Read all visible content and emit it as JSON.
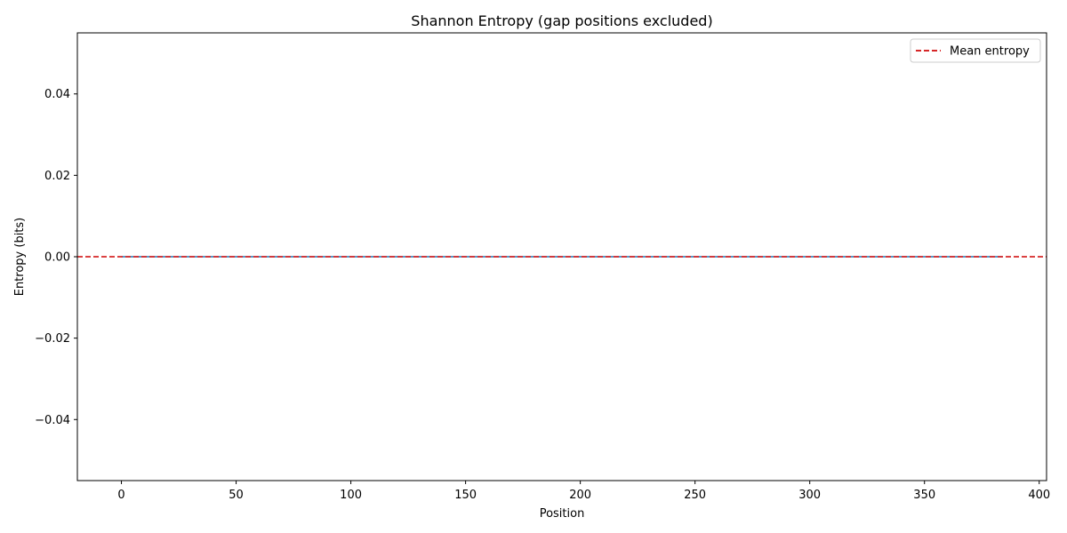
{
  "chart_data": {
    "type": "line",
    "title": "Shannon Entropy (gap positions excluded)",
    "xlabel": "Position",
    "ylabel": "Entropy (bits)",
    "xlim": [
      -19.2,
      403.2
    ],
    "ylim": [
      -0.055,
      0.055
    ],
    "xticks": [
      0,
      50,
      100,
      150,
      200,
      250,
      300,
      350,
      400
    ],
    "xtick_labels": [
      "0",
      "50",
      "100",
      "150",
      "200",
      "250",
      "300",
      "350",
      "400"
    ],
    "yticks": [
      -0.04,
      -0.02,
      0.0,
      0.02,
      0.04
    ],
    "ytick_labels": [
      "−0.04",
      "−0.02",
      "0.00",
      "0.02",
      "0.04"
    ],
    "grid": false,
    "legend_position": "upper right",
    "series": [
      {
        "kind": "line",
        "color": "#1f77b4",
        "x_start": 0,
        "x_end": 384,
        "value": 0.0
      },
      {
        "kind": "hline",
        "name": "Mean entropy",
        "color": "#d62728",
        "style": "dashed",
        "value": 0.0
      }
    ]
  }
}
